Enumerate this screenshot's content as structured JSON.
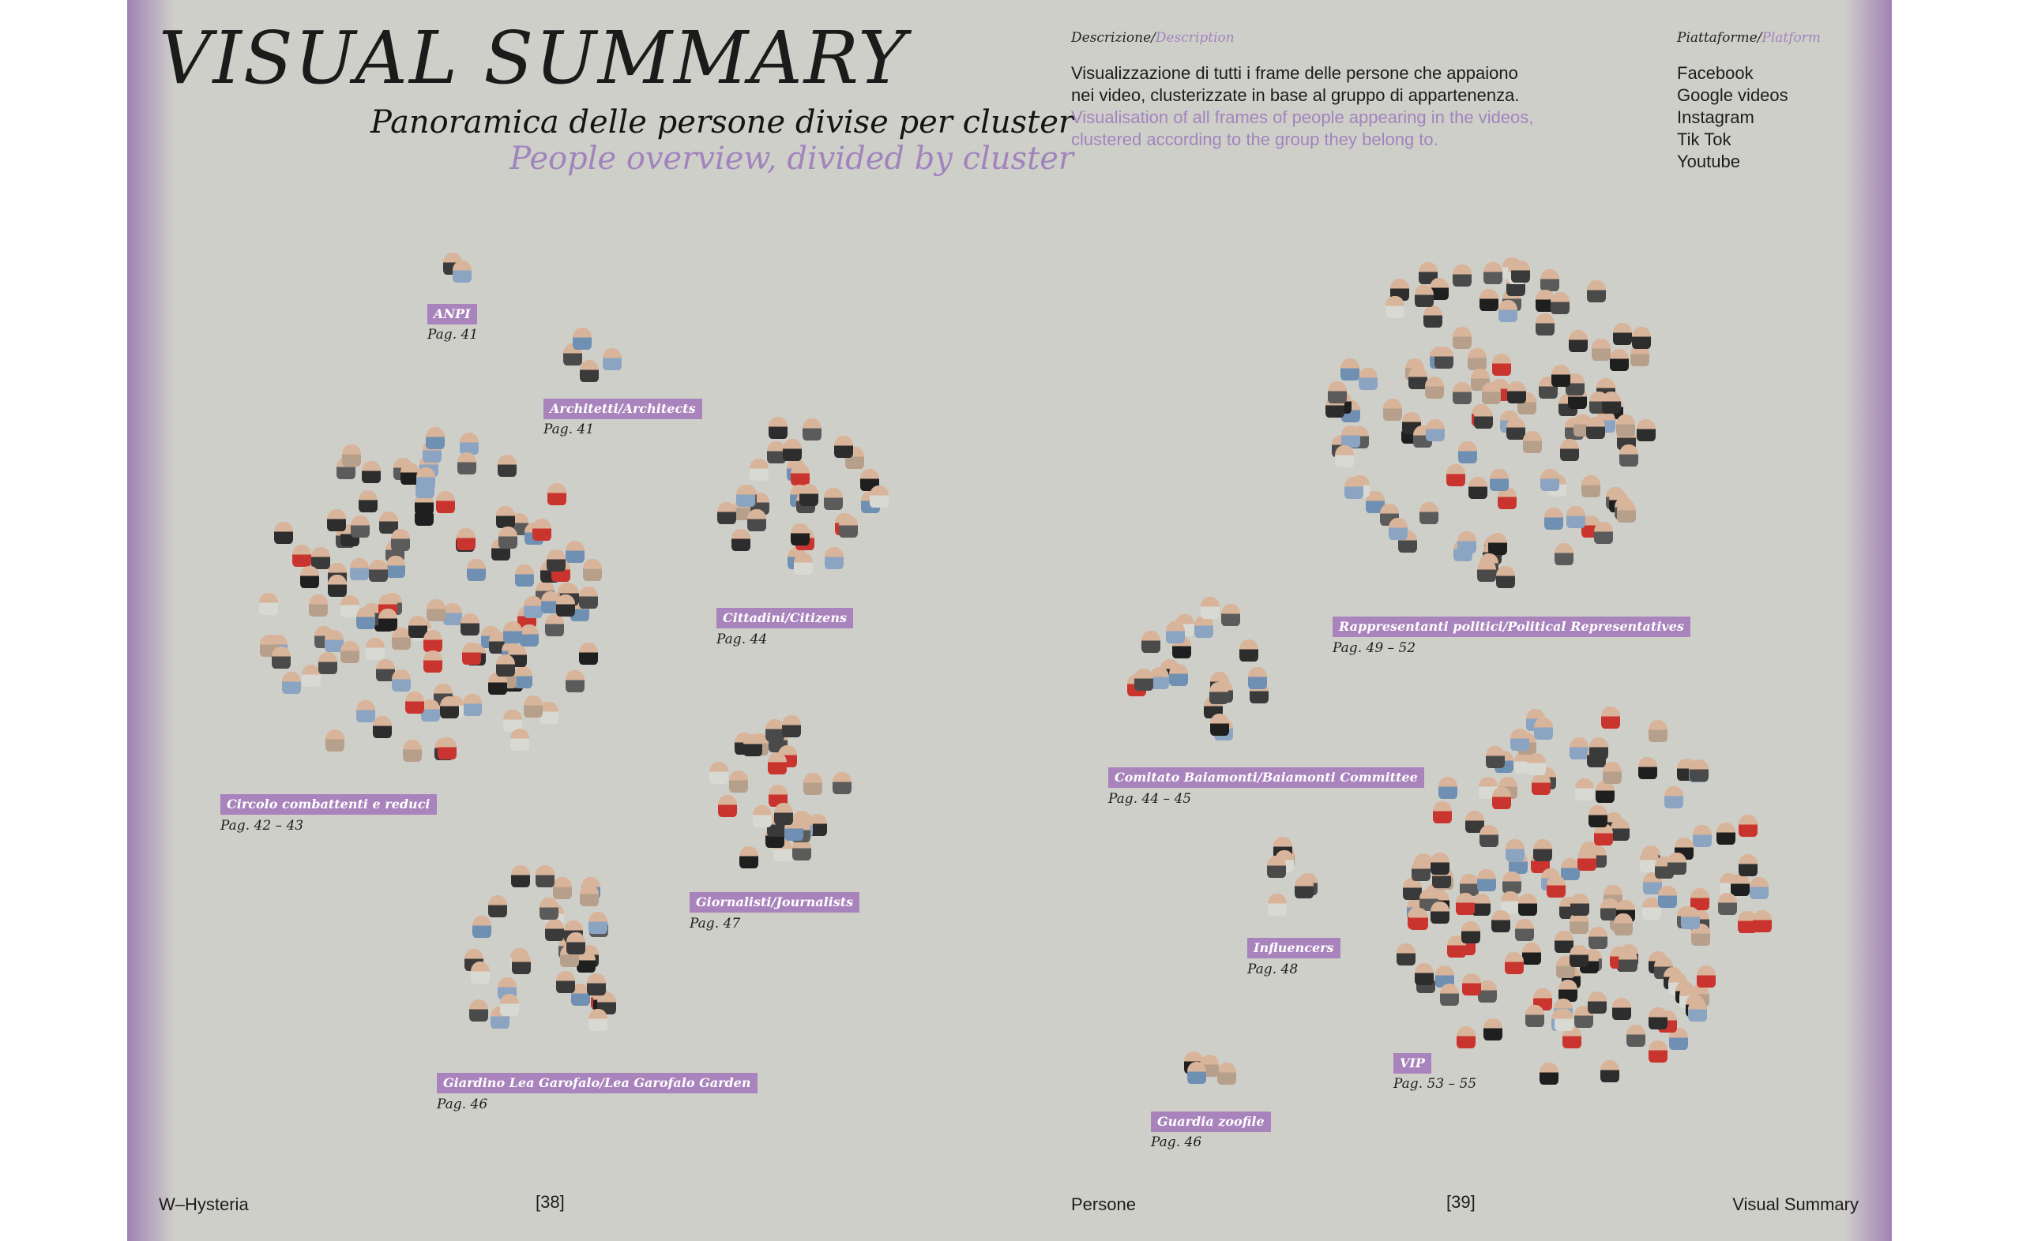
{
  "title": "VISUAL SUMMARY",
  "subtitle_it": "Panoramica delle persone divise per cluster",
  "subtitle_en": "People overview, divided by cluster",
  "description": {
    "header_it": "Descrizione/",
    "header_en": "Description",
    "line1": "Visualizzazione di tutti i frame delle persone che appaiono",
    "line2": "nei video, clusterizzate in base al gruppo di appartenenza.",
    "line3": "Visualisation of all frames of people appearing in the videos,",
    "line4": "clustered according to the group they belong to."
  },
  "platforms": {
    "header_it": "Piattaforme/",
    "header_en": "Platform",
    "items": [
      "Facebook",
      "Google videos",
      "Instagram",
      "Tik Tok",
      "Youtube"
    ]
  },
  "clusters": [
    {
      "label": "ANPI",
      "page": "Pag. 41"
    },
    {
      "label": "Architetti/Architects",
      "page": "Pag. 41"
    },
    {
      "label": "Circolo combattenti e reduci",
      "page": "Pag. 42 – 43"
    },
    {
      "label": "Cittadini/Citizens",
      "page": "Pag. 44"
    },
    {
      "label": "Giornalisti/Journalists",
      "page": "Pag. 47"
    },
    {
      "label": "Giardino Lea Garofalo/Lea Garofalo Garden",
      "page": "Pag. 46"
    },
    {
      "label": "Rappresentanti politici/Political Representatives",
      "page": "Pag. 49 – 52"
    },
    {
      "label": "Comitato Baiamonti/Baiamonti Committee",
      "page": "Pag. 44 – 45"
    },
    {
      "label": "Influencers",
      "page": "Pag. 48"
    },
    {
      "label": "VIP",
      "page": "Pag. 53 – 55"
    },
    {
      "label": "Guardia zoofile",
      "page": "Pag. 46"
    }
  ],
  "footer": {
    "left_title": "W–Hysteria",
    "left_page": "[38]",
    "right_section": "Persone",
    "right_page": "[39]",
    "right_title": "Visual Summary"
  },
  "colors": {
    "background": "#cfcfca",
    "accent": "#a983bc",
    "accent_text": "#a184bd",
    "edge": "#a182b4"
  }
}
